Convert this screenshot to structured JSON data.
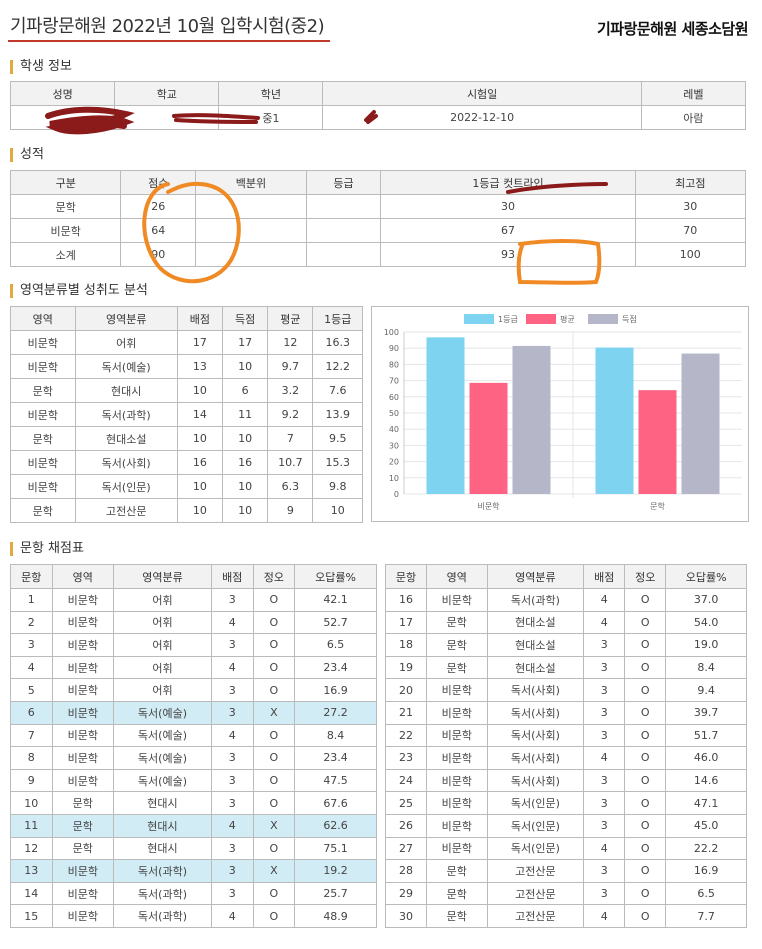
{
  "page": {
    "title": "기파랑문해원 2022년 10월 입학시험(중2)",
    "brand": "기파랑문해원 세종소담원"
  },
  "student": {
    "section_title": "학생 정보",
    "headers": [
      "성명",
      "학교",
      "학년",
      "시험일",
      "레벨"
    ],
    "values": [
      "",
      "",
      "중1",
      "2022-12-10",
      "아람"
    ]
  },
  "grades": {
    "section_title": "성적",
    "headers": [
      "구분",
      "점수",
      "백분위",
      "등급",
      "1등급 컷트라인",
      "최고점"
    ],
    "rows": [
      [
        "문학",
        "26",
        "",
        "",
        "30",
        "30"
      ],
      [
        "비문학",
        "64",
        "",
        "",
        "67",
        "70"
      ],
      [
        "소계",
        "90",
        "",
        "",
        "93",
        "100"
      ]
    ]
  },
  "area": {
    "section_title": "영역분류별 성취도 분석",
    "headers": [
      "영역",
      "영역분류",
      "배점",
      "득점",
      "평균",
      "1등급"
    ],
    "rows": [
      [
        "비문학",
        "어휘",
        "17",
        "17",
        "12",
        "16.3"
      ],
      [
        "비문학",
        "독서(예술)",
        "13",
        "10",
        "9.7",
        "12.2"
      ],
      [
        "문학",
        "현대시",
        "10",
        "6",
        "3.2",
        "7.6"
      ],
      [
        "비문학",
        "독서(과학)",
        "14",
        "11",
        "9.2",
        "13.9"
      ],
      [
        "문학",
        "현대소설",
        "10",
        "10",
        "7",
        "9.5"
      ],
      [
        "비문학",
        "독서(사회)",
        "16",
        "16",
        "10.7",
        "15.3"
      ],
      [
        "비문학",
        "독서(인문)",
        "10",
        "10",
        "6.3",
        "9.8"
      ],
      [
        "문학",
        "고전산문",
        "10",
        "10",
        "9",
        "10"
      ]
    ]
  },
  "chart_data": {
    "type": "bar",
    "categories": [
      "비문학",
      "문학"
    ],
    "series": [
      {
        "name": "1등급",
        "color": "#7dd3f0",
        "values": [
          96.7,
          90.4
        ]
      },
      {
        "name": "평균",
        "color": "#ff6384",
        "values": [
          68.6,
          64.1
        ]
      },
      {
        "name": "득점",
        "color": "#b5b6c8",
        "values": [
          91.4,
          86.7
        ]
      }
    ],
    "ylim": [
      0,
      100
    ],
    "yticks": [
      0,
      10,
      20,
      30,
      40,
      50,
      60,
      70,
      80,
      90,
      100
    ],
    "legend": "top",
    "grid": true
  },
  "answers": {
    "section_title": "문항 채점표",
    "headers": [
      "문항",
      "영역",
      "영역분류",
      "배점",
      "정오",
      "오답률%"
    ],
    "left": [
      [
        "1",
        "비문학",
        "어휘",
        "3",
        "O",
        "42.1"
      ],
      [
        "2",
        "비문학",
        "어휘",
        "4",
        "O",
        "52.7"
      ],
      [
        "3",
        "비문학",
        "어휘",
        "3",
        "O",
        "6.5"
      ],
      [
        "4",
        "비문학",
        "어휘",
        "4",
        "O",
        "23.4"
      ],
      [
        "5",
        "비문학",
        "어휘",
        "3",
        "O",
        "16.9"
      ],
      [
        "6",
        "비문학",
        "독서(예술)",
        "3",
        "X",
        "27.2"
      ],
      [
        "7",
        "비문학",
        "독서(예술)",
        "4",
        "O",
        "8.4"
      ],
      [
        "8",
        "비문학",
        "독서(예술)",
        "3",
        "O",
        "23.4"
      ],
      [
        "9",
        "비문학",
        "독서(예술)",
        "3",
        "O",
        "47.5"
      ],
      [
        "10",
        "문학",
        "현대시",
        "3",
        "O",
        "67.6"
      ],
      [
        "11",
        "문학",
        "현대시",
        "4",
        "X",
        "62.6"
      ],
      [
        "12",
        "문학",
        "현대시",
        "3",
        "O",
        "75.1"
      ],
      [
        "13",
        "비문학",
        "독서(과학)",
        "3",
        "X",
        "19.2"
      ],
      [
        "14",
        "비문학",
        "독서(과학)",
        "3",
        "O",
        "25.7"
      ],
      [
        "15",
        "비문학",
        "독서(과학)",
        "4",
        "O",
        "48.9"
      ]
    ],
    "right": [
      [
        "16",
        "비문학",
        "독서(과학)",
        "4",
        "O",
        "37.0"
      ],
      [
        "17",
        "문학",
        "현대소설",
        "4",
        "O",
        "54.0"
      ],
      [
        "18",
        "문학",
        "현대소설",
        "3",
        "O",
        "19.0"
      ],
      [
        "19",
        "문학",
        "현대소설",
        "3",
        "O",
        "8.4"
      ],
      [
        "20",
        "비문학",
        "독서(사회)",
        "3",
        "O",
        "9.4"
      ],
      [
        "21",
        "비문학",
        "독서(사회)",
        "3",
        "O",
        "39.7"
      ],
      [
        "22",
        "비문학",
        "독서(사회)",
        "3",
        "O",
        "51.7"
      ],
      [
        "23",
        "비문학",
        "독서(사회)",
        "4",
        "O",
        "46.0"
      ],
      [
        "24",
        "비문학",
        "독서(사회)",
        "3",
        "O",
        "14.6"
      ],
      [
        "25",
        "비문학",
        "독서(인문)",
        "3",
        "O",
        "47.1"
      ],
      [
        "26",
        "비문학",
        "독서(인문)",
        "3",
        "O",
        "45.0"
      ],
      [
        "27",
        "비문학",
        "독서(인문)",
        "4",
        "O",
        "22.2"
      ],
      [
        "28",
        "문학",
        "고전산문",
        "3",
        "O",
        "16.9"
      ],
      [
        "29",
        "문학",
        "고전산문",
        "3",
        "O",
        "6.5"
      ],
      [
        "30",
        "문학",
        "고전산문",
        "4",
        "O",
        "7.7"
      ]
    ],
    "highlight_color": "#d2ecf5"
  }
}
